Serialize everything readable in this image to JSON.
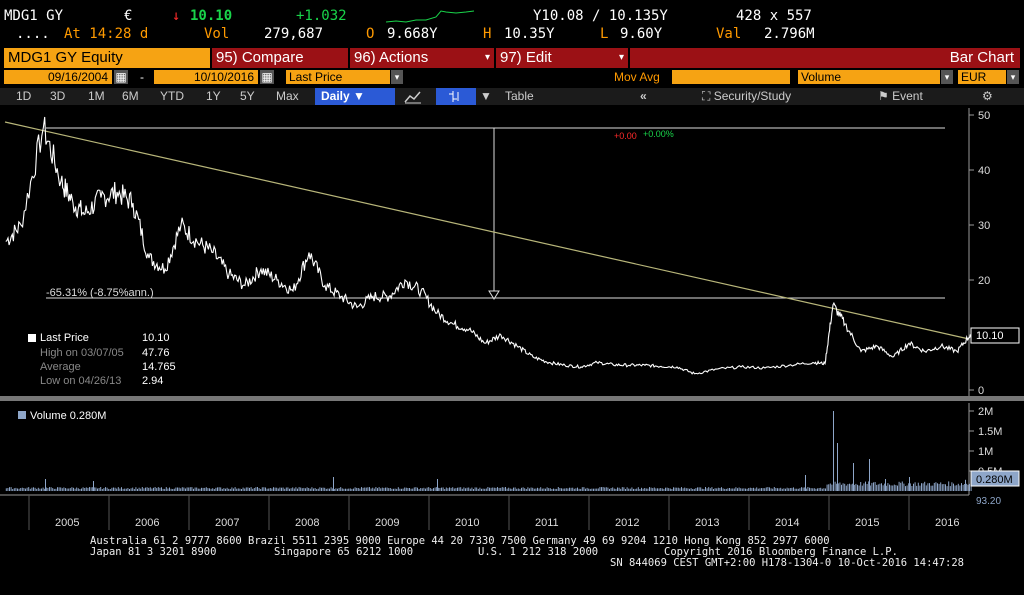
{
  "header": {
    "ticker": "MDG1 GY",
    "currency": "€",
    "down_arrow": "↓",
    "last_price": "10.10",
    "change": "+1.032",
    "bid_ask": "Y10.08 / 10.135Y",
    "size": "428 x 557",
    "dots": "....",
    "at_time": "At 14:28 d",
    "vol_label": "Vol",
    "vol_value": "279,687",
    "open_label": "O",
    "open_value": "9.668Y",
    "high_label": "H",
    "high_value": "10.35Y",
    "low_label": "L",
    "low_value": "9.60Y",
    "val_label": "Val",
    "val_value": "2.796M"
  },
  "toolbar": {
    "security": "MDG1 GY Equity",
    "compare": "95) Compare",
    "actions": "96) Actions",
    "edit": "97) Edit",
    "chart_type": "Bar Chart"
  },
  "settings": {
    "start_date": "09/16/2004",
    "dash": "-",
    "end_date": "10/10/2016",
    "field": "Last Price",
    "mov_avg_label": "Mov Avg",
    "volume_field": "Volume",
    "currency": "EUR"
  },
  "tabs": {
    "periods": [
      "1D",
      "3D",
      "1M",
      "6M",
      "YTD",
      "1Y",
      "5Y",
      "Max"
    ],
    "daily": "Daily ▼",
    "table": "Table",
    "collapse": "«",
    "security_study": "Security/Study",
    "event": "Event"
  },
  "price_chart": {
    "yticks": [
      "50",
      "40",
      "30",
      "20",
      "10",
      "0"
    ],
    "last_label": "10.10",
    "annotation_pct": "-65.31% (-8.75%ann.)",
    "change_red": "+0.00",
    "change_green": "+0.00%"
  },
  "price_legend": {
    "last_price_label": "Last Price",
    "last_price_value": "10.10",
    "high_label": "High on 03/07/05",
    "high_value": "47.76",
    "average_label": "Average",
    "average_value": "14.765",
    "low_label": "Low on 04/26/13",
    "low_value": "2.94"
  },
  "volume_chart": {
    "legend": "Volume 0.280M",
    "yticks": [
      "2M",
      "1.5M",
      "1M",
      "0.5M"
    ],
    "last_label": "0.280M",
    "hidden_label": "93.20"
  },
  "xaxis": [
    "2005",
    "2006",
    "2007",
    "2008",
    "2009",
    "2010",
    "2011",
    "2012",
    "2013",
    "2014",
    "2015",
    "2016"
  ],
  "footer": {
    "line1": "Australia 61 2 9777 8600 Brazil 5511 2395 9000 Europe 44 20 7330 7500 Germany 49 69 9204 1210 Hong Kong 852 2977 6000",
    "line2a": "Japan 81 3 3201 8900",
    "line2b": "Singapore 65 6212 1000",
    "line2c": "U.S. 1 212 318 2000",
    "line2d": "Copyright 2016 Bloomberg Finance L.P.",
    "line3": "SN 844069 CEST GMT+2:00 H178-1304-0 10-Oct-2016 14:47:28"
  },
  "chart_data": {
    "type": "line",
    "ylim": [
      0,
      50
    ],
    "x": [
      2004.71,
      2004.9,
      2005.18,
      2005.4,
      2005.55,
      2005.7,
      2005.9,
      2006.1,
      2006.3,
      2006.5,
      2006.7,
      2006.9,
      2007.1,
      2007.3,
      2007.5,
      2007.7,
      2007.9,
      2008.1,
      2008.3,
      2008.5,
      2008.7,
      2008.9,
      2009.1,
      2009.3,
      2009.5,
      2009.7,
      2009.9,
      2010.1,
      2010.3,
      2010.5,
      2010.7,
      2010.9,
      2011.1,
      2011.3,
      2011.5,
      2011.7,
      2011.9,
      2012.1,
      2012.3,
      2012.5,
      2012.7,
      2012.9,
      2013.1,
      2013.32,
      2013.6,
      2013.9,
      2014.2,
      2014.5,
      2014.8,
      2014.95,
      2015.05,
      2015.2,
      2015.4,
      2015.6,
      2015.8,
      2016.0,
      2016.2,
      2016.4,
      2016.6,
      2016.77
    ],
    "y": [
      27,
      30,
      47.76,
      38,
      34,
      32,
      35,
      36,
      34,
      24,
      22,
      30,
      27,
      25,
      21,
      19,
      22,
      20,
      18,
      25,
      19,
      17,
      15,
      17,
      17,
      20,
      18,
      14,
      12,
      11,
      8.5,
      10,
      8,
      6,
      5,
      4.5,
      4.2,
      5,
      4.6,
      4.5,
      4.5,
      4.3,
      4.2,
      2.94,
      3.8,
      4.2,
      4,
      4.5,
      5,
      4.8,
      15.5,
      12,
      7,
      8,
      6,
      8.5,
      7,
      8,
      7,
      10.1
    ],
    "volume_x": [
      2005.2,
      2005.8,
      2008.8,
      2010.1,
      2014.7,
      2015.05,
      2015.1,
      2015.3,
      2015.5,
      2015.7,
      2016.0,
      2016.7
    ],
    "volume_y": [
      0.3,
      0.25,
      0.35,
      0.3,
      0.4,
      2.0,
      1.2,
      0.7,
      0.8,
      0.3,
      0.35,
      0.28
    ],
    "volume_ylim": [
      0,
      2.2
    ]
  }
}
